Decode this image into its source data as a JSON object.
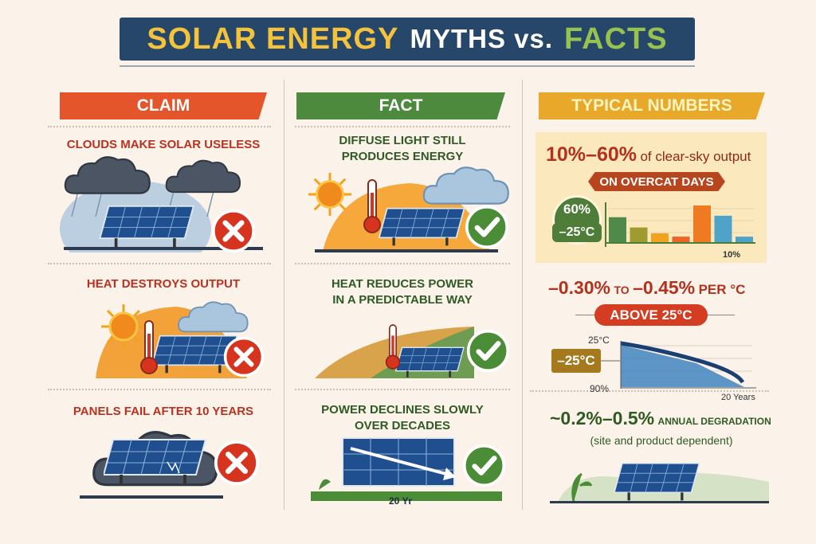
{
  "title": {
    "part1": "SOLAR ENERGY",
    "part2": "MYTHS vs.",
    "part3": "FACTS"
  },
  "headers": {
    "claim": "CLAIM",
    "fact": "FACT",
    "numbers": "TYPICAL NUMBERS"
  },
  "claims": [
    "CLOUDS MAKE SOLAR USELESS",
    "HEAT DESTROYS OUTPUT",
    "PANELS FAIL AFTER 10 YEARS"
  ],
  "facts": [
    {
      "line1": "DIFFUSE LIGHT STILL",
      "line2": "PRODUCES ENERGY"
    },
    {
      "line1": "HEAT REDUCES POWER",
      "line2": "IN A PREDICTABLE WAY"
    },
    {
      "line1": "POWER DECLINES SLOWLY",
      "line2": "OVER DECADES",
      "axis": "20 Yr"
    }
  ],
  "numbers": {
    "clouds": {
      "range": "10%–60%",
      "suffix": "of clear-sky output",
      "ribbon": "ON OVERCAT DAYS",
      "badge_top": "60%",
      "badge_bottom": "–25°C",
      "bottom_label": "10%",
      "bars": [
        0.68,
        0.4,
        0.24,
        0.15,
        1.0,
        0.72,
        0.15
      ]
    },
    "heat": {
      "from": "–0.30%",
      "to_word": "TO",
      "to": "–0.45%",
      "unit": "PER °C",
      "pill": "ABOVE 25°C",
      "y_top": "25°C",
      "tag": "–25°C",
      "y_bottom": "90%",
      "x_end": "20 Years"
    },
    "degradation": {
      "range": "~0.2%–0.5%",
      "label": "ANNUAL DEGRADATION",
      "note": "(site and product dependent)"
    }
  },
  "colors": {
    "navy": "#27476a",
    "claim": "#e4552b",
    "fact": "#4d8a3d",
    "numbers": "#e8a82a"
  }
}
